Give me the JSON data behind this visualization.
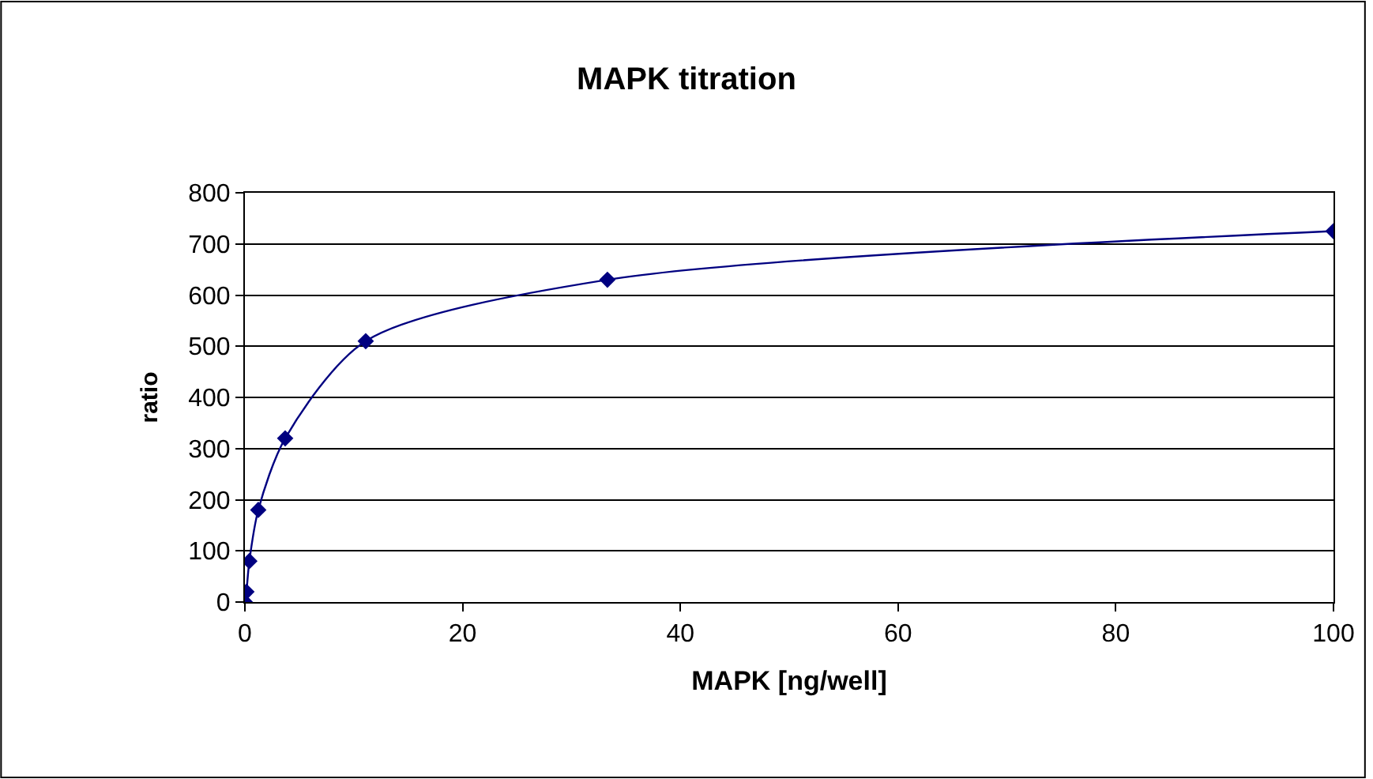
{
  "chart_data": {
    "type": "line",
    "title": "MAPK titration",
    "xlabel": "MAPK [ng/well]",
    "ylabel": "ratio",
    "x": [
      0,
      0.14,
      0.41,
      1.23,
      3.7,
      11.1,
      33.3,
      100
    ],
    "series": [
      {
        "color": "#000080",
        "values": [
          0,
          20,
          80,
          180,
          320,
          510,
          630,
          725
        ]
      }
    ],
    "xlim": [
      0,
      100
    ],
    "xticks": [
      0,
      20,
      40,
      60,
      80,
      100
    ],
    "ylim": [
      0,
      800
    ],
    "yticks": [
      0,
      100,
      200,
      300,
      400,
      500,
      600,
      700,
      800
    ],
    "grid": "y",
    "marker": "diamond",
    "line_style": "solid"
  }
}
